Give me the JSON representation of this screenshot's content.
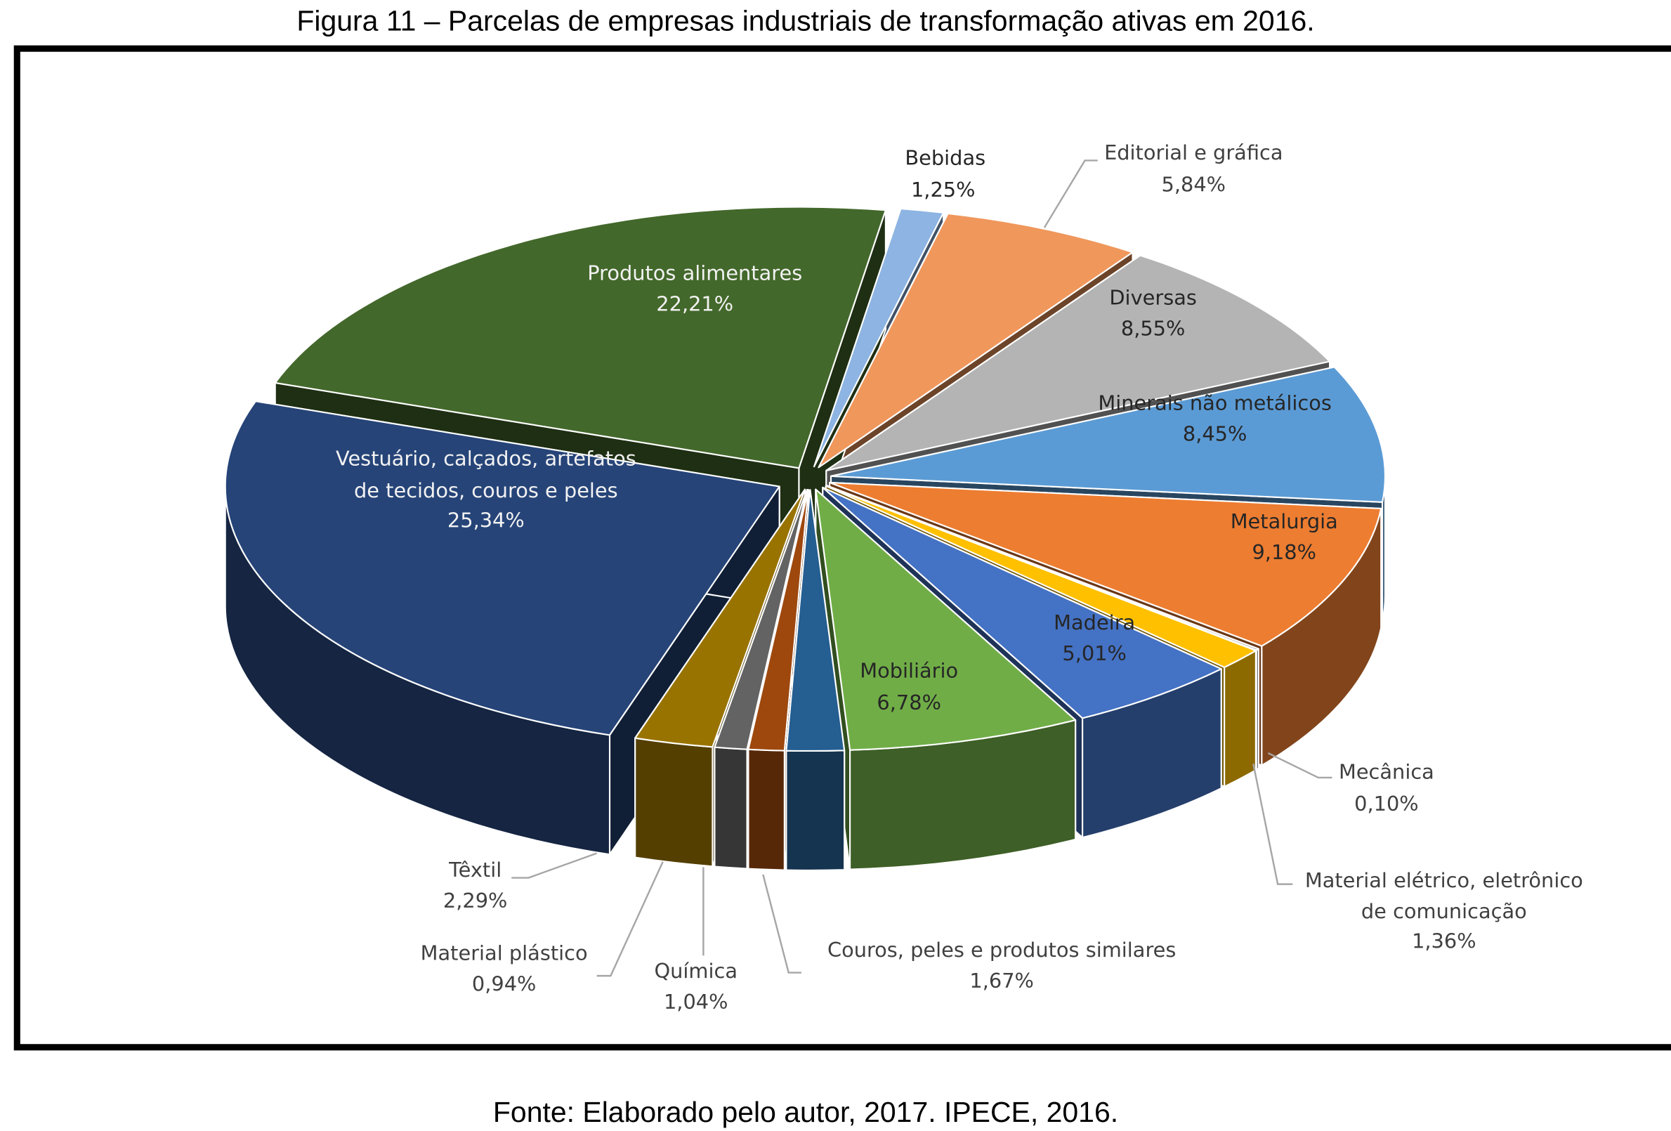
{
  "title": "Figura 11 – Parcelas de empresas industriais de transformação ativas em 2016.",
  "source": "Fonte: Elaborado pelo autor, 2017. IPECE, 2016.",
  "chart_data": {
    "type": "pie",
    "style": "3d-exploded",
    "title": "Figura 11 – Parcelas de empresas industriais de transformação ativas em 2016.",
    "unit": "%",
    "slices": [
      {
        "label": "Bebidas",
        "label_lines": [
          "Bebidas"
        ],
        "value": 1.25,
        "value_text": "1,25%",
        "color": "#8DB4E2"
      },
      {
        "label": "Editorial e gráfica",
        "label_lines": [
          "Editorial e gráfica"
        ],
        "value": 5.84,
        "value_text": "5,84%",
        "color": "#F0975C"
      },
      {
        "label": "Diversas",
        "label_lines": [
          "Diversas"
        ],
        "value": 8.55,
        "value_text": "8,55%",
        "color": "#B4B4B4"
      },
      {
        "label": "Minerais não metálicos",
        "label_lines": [
          "Minerais não metálicos"
        ],
        "value": 8.45,
        "value_text": "8,45%",
        "color": "#5B9BD5"
      },
      {
        "label": "Metalurgia",
        "label_lines": [
          "Metalurgia"
        ],
        "value": 9.18,
        "value_text": "9,18%",
        "color": "#ED7D31"
      },
      {
        "label": "Mecânica",
        "label_lines": [
          "Mecânica"
        ],
        "value": 0.1,
        "value_text": "0,10%",
        "color": "#A5A5A5"
      },
      {
        "label": "Material elétrico, eletrônico de comunicação",
        "label_lines": [
          "Material elétrico, eletrônico",
          "de comunicação"
        ],
        "value": 1.36,
        "value_text": "1,36%",
        "color": "#FFC000"
      },
      {
        "label": "Madeira",
        "label_lines": [
          "Madeira"
        ],
        "value": 5.01,
        "value_text": "5,01%",
        "color": "#4472C4"
      },
      {
        "label": "Mobiliário",
        "label_lines": [
          "Mobiliário"
        ],
        "value": 6.78,
        "value_text": "6,78%",
        "color": "#70AD47"
      },
      {
        "label": "Couros, peles e produtos similares",
        "label_lines": [
          "Couros, peles e produtos similares"
        ],
        "value": 1.67,
        "value_text": "1,67%",
        "color": "#255E91"
      },
      {
        "label": "Química",
        "label_lines": [
          "Química"
        ],
        "value": 1.04,
        "value_text": "1,04%",
        "color": "#9E480E"
      },
      {
        "label": "Material plástico",
        "label_lines": [
          "Material plástico"
        ],
        "value": 0.94,
        "value_text": "0,94%",
        "color": "#636363"
      },
      {
        "label": "Têxtil",
        "label_lines": [
          "Têxtil"
        ],
        "value": 2.29,
        "value_text": "2,29%",
        "color": "#997300"
      },
      {
        "label": "Vestuário, calçados, artefatos de tecidos, couros e peles",
        "label_lines": [
          "Vestuário, calçados, artefatos",
          "de tecidos, couros e peles"
        ],
        "value": 25.34,
        "value_text": "25,34%",
        "color": "#264478"
      },
      {
        "label": "Produtos alimentares",
        "label_lines": [
          "Produtos alimentares"
        ],
        "value": 22.21,
        "value_text": "22,21%",
        "color": "#43682B"
      }
    ]
  }
}
